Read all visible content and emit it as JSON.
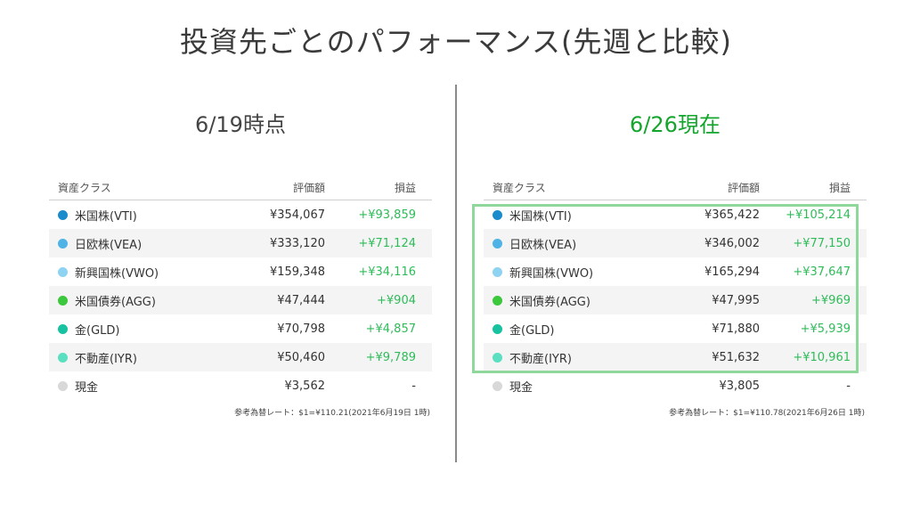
{
  "title": "投資先ごとのパフォーマンス(先週と比較)",
  "headers": {
    "asset": "資産クラス",
    "value": "評価額",
    "pl": "損益"
  },
  "colors": {
    "vti": "#1a8ccc",
    "vea": "#4fb3e6",
    "vwo": "#8fd3f2",
    "agg": "#3cc83c",
    "gld": "#17c2a0",
    "iyr": "#5ae0c0",
    "cash": "#d8d8d8",
    "highlight": "#8fd79a"
  },
  "left": {
    "heading": "6/19時点",
    "rows": [
      {
        "name": "米国株(VTI)",
        "value": "¥354,067",
        "pl": "+¥93,859"
      },
      {
        "name": "日欧株(VEA)",
        "value": "¥333,120",
        "pl": "+¥71,124"
      },
      {
        "name": "新興国株(VWO)",
        "value": "¥159,348",
        "pl": "+¥34,116"
      },
      {
        "name": "米国債券(AGG)",
        "value": "¥47,444",
        "pl": "+¥904"
      },
      {
        "name": "金(GLD)",
        "value": "¥70,798",
        "pl": "+¥4,857"
      },
      {
        "name": "不動産(IYR)",
        "value": "¥50,460",
        "pl": "+¥9,789"
      },
      {
        "name": "現金",
        "value": "¥3,562",
        "pl": "-"
      }
    ],
    "note": "参考為替レート：$1=¥110.21(2021年6月19日 1時)"
  },
  "right": {
    "heading": "6/26現在",
    "rows": [
      {
        "name": "米国株(VTI)",
        "value": "¥365,422",
        "pl": "+¥105,214"
      },
      {
        "name": "日欧株(VEA)",
        "value": "¥346,002",
        "pl": "+¥77,150"
      },
      {
        "name": "新興国株(VWO)",
        "value": "¥165,294",
        "pl": "+¥37,647"
      },
      {
        "name": "米国債券(AGG)",
        "value": "¥47,995",
        "pl": "+¥969"
      },
      {
        "name": "金(GLD)",
        "value": "¥71,880",
        "pl": "+¥5,939"
      },
      {
        "name": "不動産(IYR)",
        "value": "¥51,632",
        "pl": "+¥10,961"
      },
      {
        "name": "現金",
        "value": "¥3,805",
        "pl": "-"
      }
    ],
    "note": "参考為替レート：$1=¥110.78(2021年6月26日 1時)"
  }
}
